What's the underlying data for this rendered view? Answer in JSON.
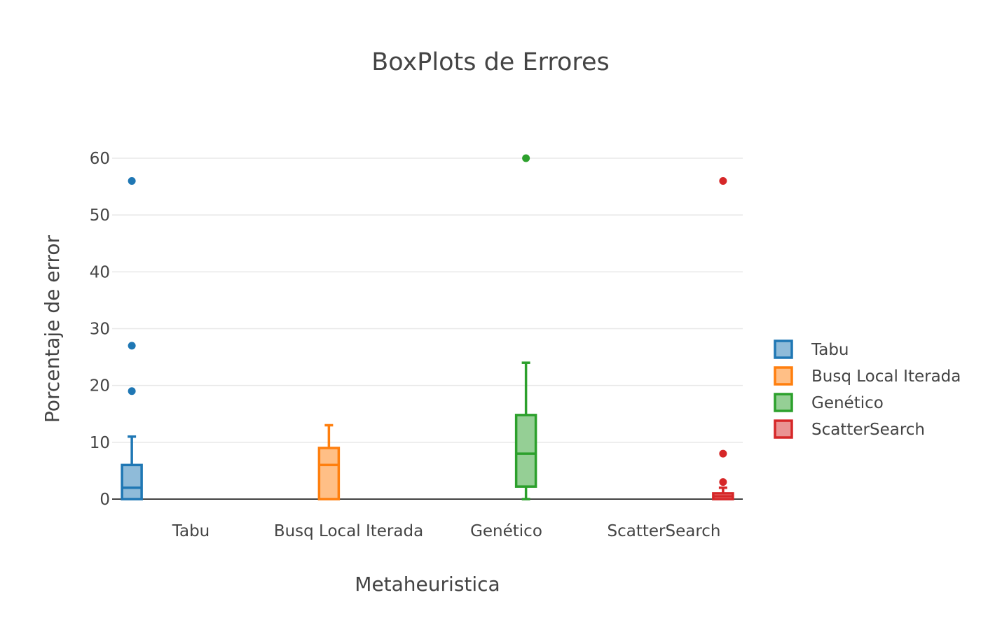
{
  "chart_data": {
    "type": "box",
    "title": "BoxPlots de Errores",
    "xlabel": "Metaheuristica",
    "ylabel": "Porcentaje de error",
    "ylim": [
      0,
      65
    ],
    "yticks": [
      0,
      10,
      20,
      30,
      40,
      50,
      60
    ],
    "grid": true,
    "legend_position": "right",
    "categories": [
      "Tabu",
      "Busq Local Iterada",
      "Genético",
      "ScatterSearch"
    ],
    "series": [
      {
        "name": "Tabu",
        "color": "#1f77b4",
        "fill": "#8fbbd9",
        "category_index": 0,
        "min": 0,
        "q1": 0,
        "median": 2,
        "q3": 6,
        "max": 11,
        "outliers": [
          19,
          27,
          56
        ]
      },
      {
        "name": "Busq Local Iterada",
        "color": "#ff7f0e",
        "fill": "#ffbf86",
        "category_index": 1,
        "min": 0,
        "q1": 0,
        "median": 6,
        "q3": 9,
        "max": 13,
        "outliers": []
      },
      {
        "name": "Genético",
        "color": "#2ca02c",
        "fill": "#95cf95",
        "category_index": 2,
        "min": 0,
        "q1": 2.2,
        "median": 8,
        "q3": 14.8,
        "max": 24,
        "outliers": [
          60
        ]
      },
      {
        "name": "ScatterSearch",
        "color": "#d62728",
        "fill": "#ea9393",
        "category_index": 3,
        "min": 0,
        "q1": 0,
        "median": 0.5,
        "q3": 1,
        "max": 2,
        "outliers": [
          3,
          8,
          56
        ]
      }
    ]
  }
}
